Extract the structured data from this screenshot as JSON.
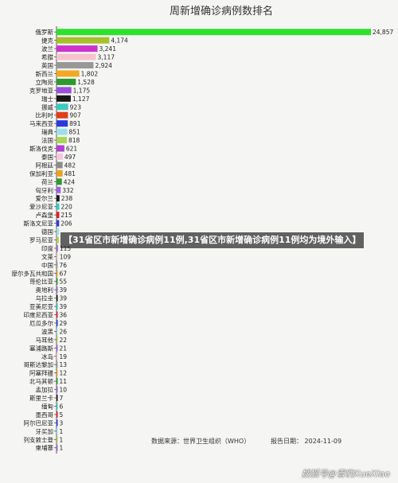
{
  "chart_data": {
    "type": "bar",
    "orientation": "horizontal",
    "title": "周新增确诊病例数排名",
    "categories": [
      "俄罗斯",
      "捷克",
      "波兰",
      "希腊",
      "英国",
      "新西兰",
      "立陶宛",
      "克罗地亚",
      "瑞士",
      "挪威",
      "比利时",
      "马来西亚",
      "瑞典",
      "法国",
      "斯洛伐克",
      "泰国",
      "阿根廷",
      "保加利亚",
      "荷兰",
      "匈牙利",
      "爱尔兰",
      "爱沙尼亚",
      "卢森堡",
      "斯洛文尼亚",
      "德国",
      "罗马尼亚",
      "印度",
      "文莱",
      "中国",
      "摩尔多瓦共和国",
      "哥伦比亚",
      "奥地利",
      "乌拉圭",
      "亚美尼亚",
      "印度尼西亚",
      "厄瓜多尔",
      "波黑",
      "马耳他",
      "塞浦路斯",
      "冰岛",
      "哥斯达黎加",
      "阿塞拜疆",
      "北马其顿",
      "孟加拉",
      "斯里兰卡",
      "缅甸",
      "墨西哥",
      "阿尔巴尼亚",
      "牙买加",
      "列支敦士登",
      "柬埔寨"
    ],
    "values": [
      24857,
      4174,
      3241,
      3117,
      2924,
      1802,
      1528,
      1175,
      1127,
      923,
      907,
      891,
      851,
      818,
      621,
      497,
      482,
      481,
      424,
      332,
      238,
      220,
      215,
      206,
      200,
      180,
      115,
      109,
      76,
      67,
      55,
      39,
      39,
      39,
      36,
      29,
      26,
      22,
      21,
      19,
      13,
      12,
      11,
      10,
      7,
      6,
      5,
      3,
      1,
      1,
      1
    ],
    "value_labels": [
      "24,857",
      "4,174",
      "3,241",
      "3,117",
      "2,924",
      "1,802",
      "1,528",
      "1,175",
      "1,127",
      "923",
      "907",
      "891",
      "851",
      "818",
      "621",
      "497",
      "482",
      "481",
      "424",
      "332",
      "238",
      "220",
      "215",
      "206",
      "",
      "",
      "115",
      "109",
      "76",
      "67",
      "55",
      "39",
      "39",
      "39",
      "36",
      "29",
      "26",
      "22",
      "21",
      "19",
      "13",
      "12",
      "11",
      "10",
      "7",
      "6",
      "5",
      "3",
      "1",
      "1",
      "1"
    ],
    "colors": [
      "#2fe02f",
      "#a8c02a",
      "#cc33cc",
      "#f7c2cf",
      "#989898",
      "#f2a823",
      "#2d9a2d",
      "#9a4fd8",
      "#161616",
      "#3ec9c2",
      "#e03e1c",
      "#2a3ae0",
      "#9ae0e8",
      "#a8d852",
      "#b040d0",
      "#f5c7dc",
      "#8c8c8c",
      "#f0a020",
      "#2f9a2f",
      "#a060e0",
      "#161616",
      "#38c8c8",
      "#e02020",
      "#2a3ae0",
      "#9ae0e8",
      "#b0d050",
      "#b060d8",
      "#f5c7dc",
      "#a0a0a0",
      "#f0a020",
      "#2f9a2f",
      "#a060e0",
      "#161616",
      "#38c8c8",
      "#e02020",
      "#2a3ae0",
      "#9ae0e8",
      "#b0d050",
      "#b060d8",
      "#f5c7dc",
      "#a0a0a0",
      "#f0a020",
      "#2f9a2f",
      "#a060e0",
      "#161616",
      "#38c8c8",
      "#e02020",
      "#2a3ae0",
      "#9ae0e8",
      "#b0d050",
      "#b060d8"
    ],
    "xlim": [
      0,
      24857
    ],
    "grid": false,
    "legend": "none"
  },
  "overlay_caption": "【31省区市新增确诊病例11例,31省区市新增确诊病例11例均为境外输入】",
  "footer": {
    "source": "数据来源：世界卫生组织（WHO）",
    "report_date": "报告日期：   2024-11-09"
  },
  "watermark": "搜狐号@雪豹XueXiao",
  "colors": {
    "background": "#f5f5f3",
    "axis": "#555555"
  }
}
